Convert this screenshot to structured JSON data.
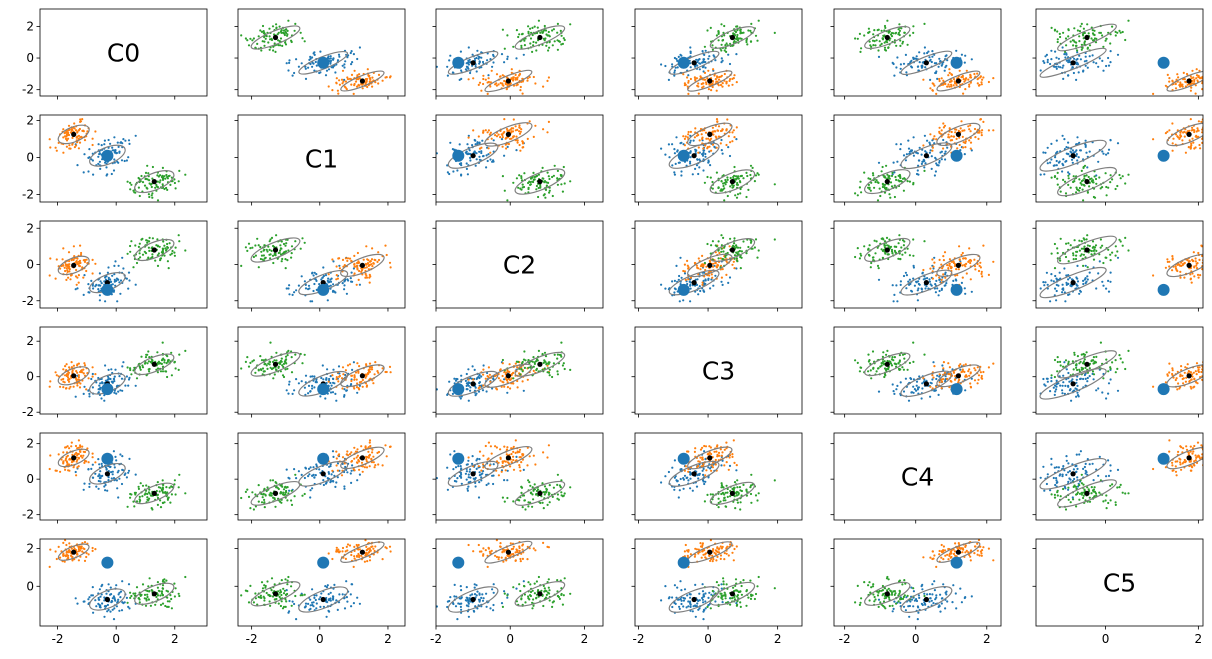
{
  "chart_data": {
    "type": "scatter",
    "title": "",
    "grid": false,
    "layout": "scatter-matrix",
    "n_rows": 6,
    "n_cols": 6,
    "dimension_labels": [
      "C0",
      "C1",
      "C2",
      "C3",
      "C4",
      "C5"
    ],
    "row_ylims": [
      [
        -2.4,
        3.1
      ],
      [
        -2.4,
        2.3
      ],
      [
        -2.4,
        2.4
      ],
      [
        -2.1,
        2.8
      ],
      [
        -2.3,
        2.6
      ],
      [
        -2.1,
        2.5
      ]
    ],
    "col_xlims": [
      [
        -2.6,
        3.1
      ],
      [
        -2.4,
        2.5
      ],
      [
        -2.0,
        2.5
      ],
      [
        -2.1,
        2.7
      ],
      [
        -2.3,
        2.4
      ],
      [
        -1.5,
        2.1
      ]
    ],
    "row_yticks": [
      [
        -2,
        0,
        2
      ],
      [
        -2,
        0,
        2
      ],
      [
        -2,
        0,
        2
      ],
      [
        -2,
        0,
        2
      ],
      [
        -2,
        0,
        2
      ],
      [
        0,
        2
      ]
    ],
    "col_xticks": [
      [
        -2,
        0,
        2
      ],
      [
        -2,
        0,
        2
      ],
      [
        -2,
        0,
        2
      ],
      [
        -2,
        0,
        2
      ],
      [
        -2,
        0,
        2
      ],
      [
        0,
        2
      ]
    ],
    "series_colors": [
      "#1f77b4",
      "#ff7f0e",
      "#2ca02c"
    ],
    "ellipse_color": "#808080",
    "center_color": "#000000",
    "cluster_means": [
      [
        -0.3,
        -1.45,
        1.3
      ],
      [
        0.1,
        1.25,
        -1.3
      ],
      [
        -1.0,
        -0.05,
        0.8
      ],
      [
        -0.4,
        0.05,
        0.7
      ],
      [
        0.3,
        1.2,
        -0.8
      ],
      [
        -0.7,
        1.8,
        -0.4
      ]
    ],
    "cluster_spreads": [
      [
        0.38,
        0.33,
        0.42
      ],
      [
        0.45,
        0.4,
        0.45
      ],
      [
        0.42,
        0.4,
        0.42
      ],
      [
        0.45,
        0.4,
        0.4
      ],
      [
        0.45,
        0.38,
        0.4
      ],
      [
        0.45,
        0.3,
        0.4
      ]
    ],
    "highlight_point": [
      -0.3,
      0.1,
      -1.4,
      -0.7,
      1.15,
      1.25
    ],
    "points_per_cluster": 90,
    "random_seed": 7
  }
}
